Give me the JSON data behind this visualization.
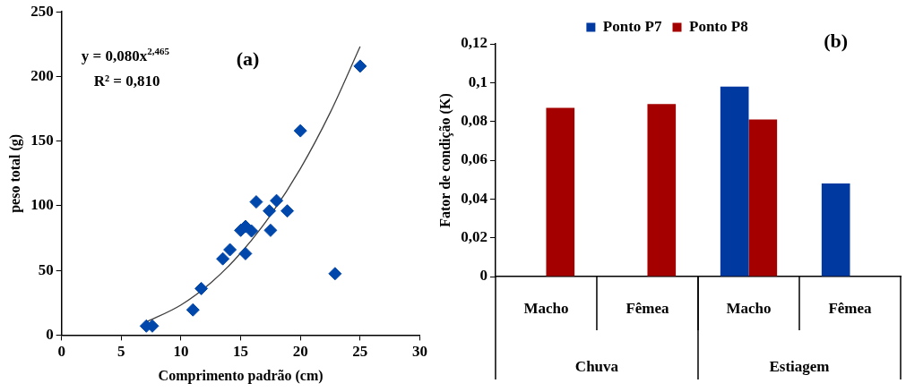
{
  "chart_data": [
    {
      "type": "scatter",
      "title": "(a)",
      "xlabel": "Comprimento padrão (cm)",
      "ylabel": "peso total (g)",
      "annotations": [
        "y = 0,080x$^{2,465}$",
        "R² = 0,810"
      ],
      "xlim": [
        0,
        30
      ],
      "xticks": [
        0,
        5,
        10,
        15,
        20,
        25,
        30
      ],
      "ylim": [
        0,
        250
      ],
      "yticks": [
        0,
        50,
        100,
        150,
        200,
        250
      ],
      "grid": false,
      "series": [
        {
          "color": "#0047ab",
          "marker": "diamond",
          "x": [
            7.1,
            7.6,
            11.0,
            11.7,
            13.5,
            14.1,
            15.0,
            15.4,
            15.4,
            15.9,
            16.3,
            17.4,
            17.5,
            18.0,
            18.9,
            20.0,
            22.9,
            25.0
          ],
          "values": [
            7,
            7,
            19.5,
            36,
            59,
            66,
            81,
            84,
            63,
            80.5,
            103,
            96,
            81,
            104,
            96,
            158,
            47.5,
            208
          ]
        },
        {
          "type": "line",
          "color": "#404040",
          "marker": "none",
          "line_style": "solid",
          "x": [
            7,
            10,
            12.5,
            15,
            17.5,
            20,
            22.5,
            25
          ],
          "values": [
            9.7,
            23.3,
            40.4,
            63.4,
            92.8,
            128.8,
            172.2,
            223.2
          ]
        }
      ]
    },
    {
      "type": "bar",
      "title": "(b)",
      "ylabel": "Fator de condição (K)",
      "categories": [
        "Macho",
        "Fêmea",
        "Macho",
        "Fêmea"
      ],
      "annotations": [
        "Chuva",
        "Estiagem"
      ],
      "ylim": [
        0,
        0.12
      ],
      "yticks": [
        {
          "value": 0,
          "label": "0"
        },
        {
          "value": 0.02,
          "label": "0,02"
        },
        {
          "value": 0.04,
          "label": "0,04"
        },
        {
          "value": 0.06,
          "label": "0,06"
        },
        {
          "value": 0.08,
          "label": "0,08"
        },
        {
          "value": 0.1,
          "label": "0,1"
        },
        {
          "value": 0.12,
          "label": "0,12"
        }
      ],
      "grid": false,
      "legend": "top",
      "series": [
        {
          "name": "Ponto P7",
          "color": "#0039a0",
          "values": [
            null,
            null,
            0.098,
            0.048
          ]
        },
        {
          "name": "Ponto P8",
          "color": "#a50000",
          "values": [
            0.087,
            0.089,
            0.081,
            null
          ]
        }
      ]
    }
  ]
}
